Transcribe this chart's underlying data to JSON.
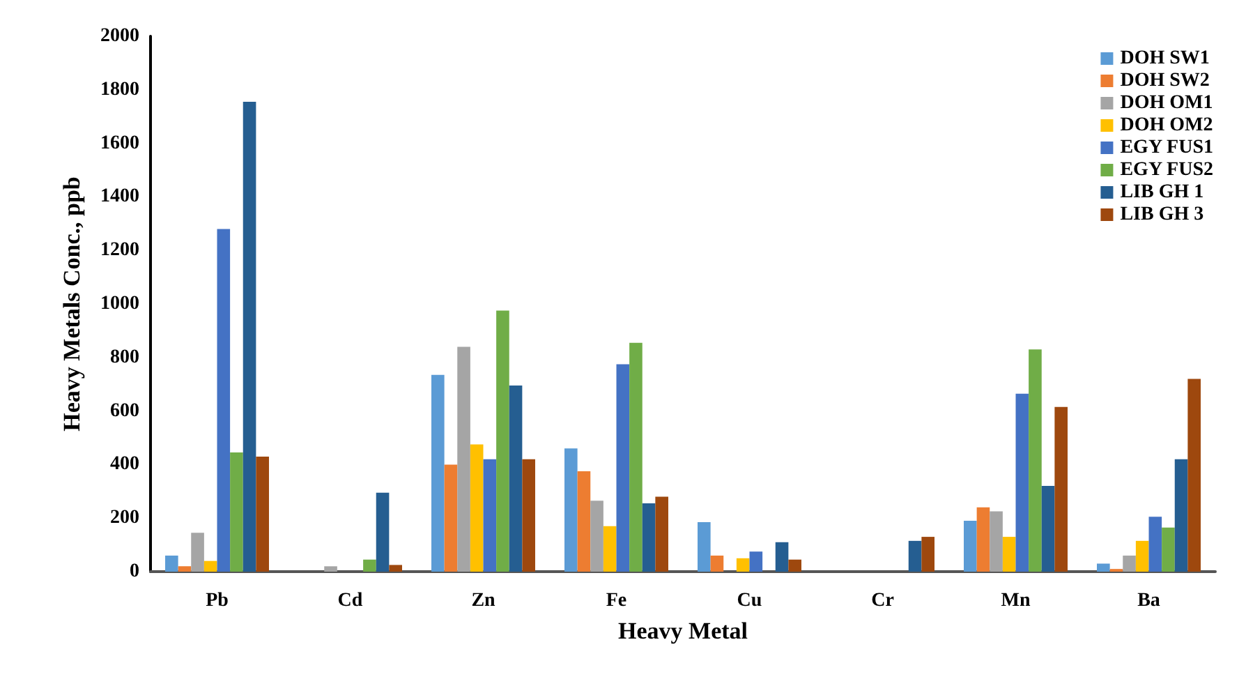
{
  "chart_data": {
    "type": "bar",
    "xlabel": "Heavy Metal",
    "ylabel": "Heavy Metals Conc., ppb",
    "categories": [
      "Pb",
      "Cd",
      "Zn",
      "Fe",
      "Cu",
      "Cr",
      "Mn",
      "Ba"
    ],
    "series": [
      {
        "name": "DOH SW1",
        "color": "#5b9bd5",
        "values": [
          60,
          0,
          735,
          460,
          185,
          0,
          190,
          30
        ]
      },
      {
        "name": "DOH SW2",
        "color": "#ed7d31",
        "values": [
          20,
          0,
          400,
          375,
          60,
          0,
          240,
          10
        ]
      },
      {
        "name": "DOH OM1",
        "color": "#a5a5a5",
        "values": [
          145,
          20,
          840,
          265,
          0,
          0,
          225,
          60
        ]
      },
      {
        "name": "DOH OM2",
        "color": "#ffc000",
        "values": [
          40,
          0,
          475,
          170,
          50,
          0,
          130,
          115
        ]
      },
      {
        "name": "EGY FUS1",
        "color": "#4472c4",
        "values": [
          1280,
          0,
          420,
          775,
          75,
          0,
          665,
          205
        ]
      },
      {
        "name": "EGY FUS2",
        "color": "#70ad47",
        "values": [
          445,
          45,
          975,
          855,
          0,
          0,
          830,
          165
        ]
      },
      {
        "name": "LIB GH 1",
        "color": "#255e91",
        "values": [
          1755,
          295,
          695,
          255,
          110,
          115,
          320,
          420
        ]
      },
      {
        "name": "LIB GH 3",
        "color": "#9e480e",
        "values": [
          430,
          25,
          420,
          280,
          45,
          130,
          615,
          720
        ]
      }
    ],
    "ylim": [
      0,
      2000
    ],
    "yticks": [
      0,
      200,
      400,
      600,
      800,
      1000,
      1200,
      1400,
      1600,
      1800,
      2000
    ],
    "grid": false,
    "legend": "top right"
  }
}
